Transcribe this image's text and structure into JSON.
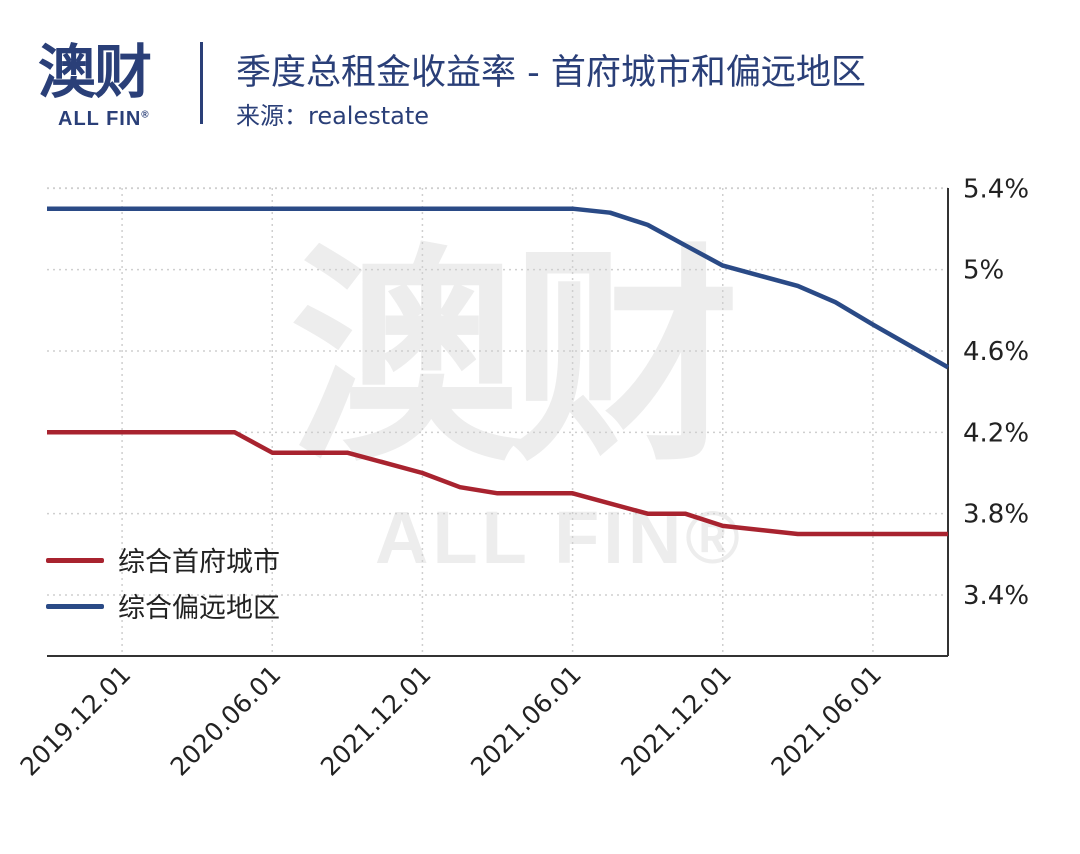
{
  "header": {
    "logo_main": "澳财",
    "logo_sub": "ALL FIN",
    "logo_reg": "®",
    "title": "季度总租金收益率 - 首府城市和偏远地区",
    "source": "来源：realestate"
  },
  "watermark": {
    "main": "澳财",
    "sub": "ALL FIN®"
  },
  "colors": {
    "capital": "#a8232f",
    "regional": "#2a4a86",
    "brand": "#2a3f78"
  },
  "chart_data": {
    "type": "line",
    "title": "季度总租金收益率 - 首府城市和偏远地区",
    "xlabel": "",
    "ylabel": "",
    "categories": [
      "2019.12.01",
      "2020.06.01",
      "2021.12.01",
      "2021.06.01",
      "2021.12.01",
      "2021.06.01"
    ],
    "x_range": [
      0,
      6
    ],
    "ylim": [
      3.1,
      5.5
    ],
    "y_ticks": [
      3.4,
      3.8,
      4.2,
      4.6,
      5.0,
      5.4
    ],
    "y_tick_labels": [
      "3.4%",
      "3.8%",
      "4.2%",
      "4.6%",
      "5%",
      "5.4%"
    ],
    "y_axis_position": "right",
    "grid": true,
    "legend_position": "bottom-left",
    "series": [
      {
        "name": "综合首府城市",
        "color": "#a8232f",
        "x": [
          0,
          1.0,
          1.25,
          1.5,
          2.0,
          2.25,
          2.5,
          2.75,
          3.0,
          3.5,
          4.0,
          4.25,
          4.5,
          5.0,
          6.0
        ],
        "y": [
          4.2,
          4.2,
          4.2,
          4.1,
          4.1,
          4.05,
          4.0,
          3.93,
          3.9,
          3.9,
          3.8,
          3.8,
          3.74,
          3.7,
          3.7
        ]
      },
      {
        "name": "综合偏远地区",
        "color": "#2a4a86",
        "x": [
          0,
          3.5,
          3.75,
          4.0,
          4.25,
          4.5,
          4.75,
          5.0,
          5.25,
          5.5,
          6.0
        ],
        "y": [
          5.3,
          5.3,
          5.28,
          5.22,
          5.12,
          5.02,
          4.97,
          4.92,
          4.84,
          4.73,
          4.52
        ]
      }
    ]
  }
}
